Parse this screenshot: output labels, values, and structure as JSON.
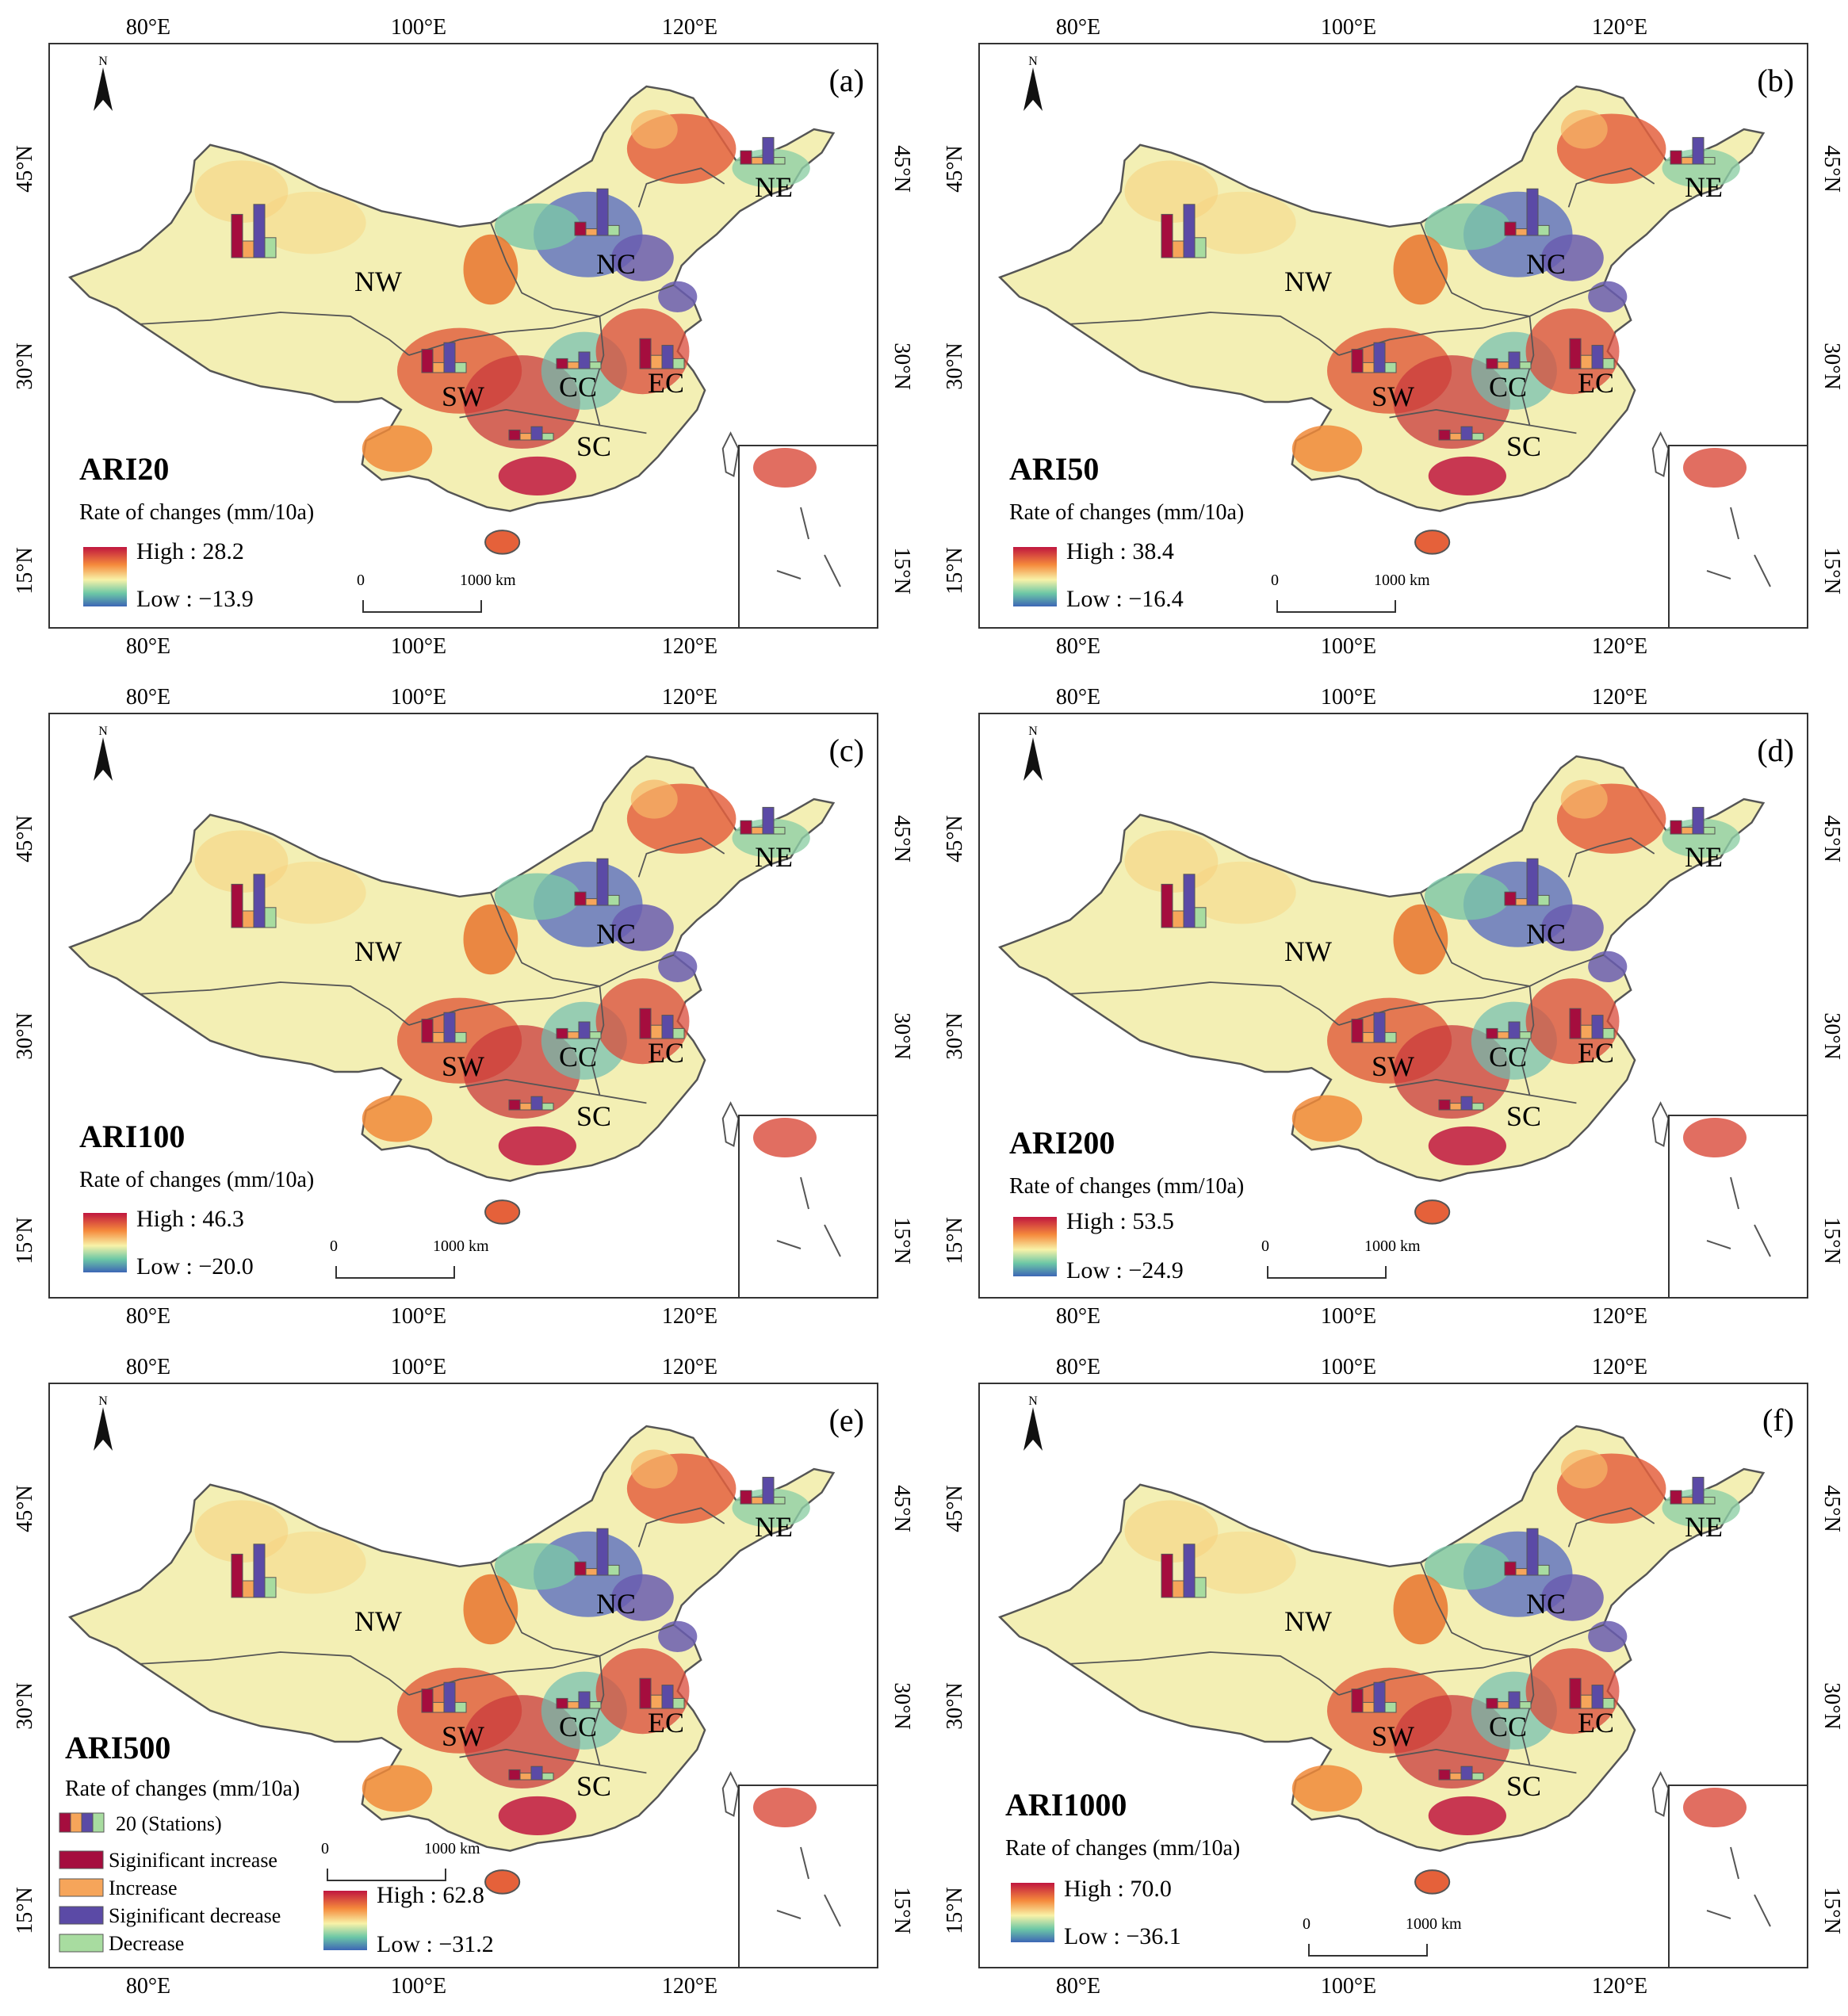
{
  "figure": {
    "axis_labels": {
      "lon": [
        "80°E",
        "100°E",
        "120°E"
      ],
      "lat": [
        "45°N",
        "30°N",
        "15°N"
      ]
    },
    "north_arrow_label": "N",
    "legend_title": "Rate of changes (mm/10a)",
    "scale_bar": {
      "start": "0",
      "end": "1000 km"
    },
    "regions": [
      "NW",
      "NC",
      "NE",
      "SW",
      "CC",
      "EC",
      "SC"
    ],
    "panels": [
      {
        "tag": "(a)",
        "title": "ARI20",
        "high": "High : 28.2",
        "low": "Low : −13.9"
      },
      {
        "tag": "(b)",
        "title": "ARI50",
        "high": "High : 38.4",
        "low": "Low : −16.4"
      },
      {
        "tag": "(c)",
        "title": "ARI100",
        "high": "High : 46.3",
        "low": "Low : −20.0"
      },
      {
        "tag": "(d)",
        "title": "ARI200",
        "high": "High : 53.5",
        "low": "Low : −24.9"
      },
      {
        "tag": "(e)",
        "title": "ARI500",
        "high": "High : 62.8",
        "low": "Low : −31.2"
      },
      {
        "tag": "(f)",
        "title": "ARI1000",
        "high": "High : 70.0",
        "low": "Low : −36.1"
      }
    ],
    "bar_legend": {
      "stations": "20 (Stations)",
      "items": [
        {
          "label": "Siginificant increase",
          "color": "#a50d3e"
        },
        {
          "label": "Increase",
          "color": "#f6a55a"
        },
        {
          "label": "Siginificant decrease",
          "color": "#5b4aa6"
        },
        {
          "label": "Decrease",
          "color": "#a8dca0"
        }
      ]
    },
    "colors": {
      "significant_increase": "#a50d3e",
      "increase": "#f6a55a",
      "significant_decrease": "#5b4aa6",
      "decrease": "#a8dca0",
      "map_base": "#f3efb4"
    }
  }
}
